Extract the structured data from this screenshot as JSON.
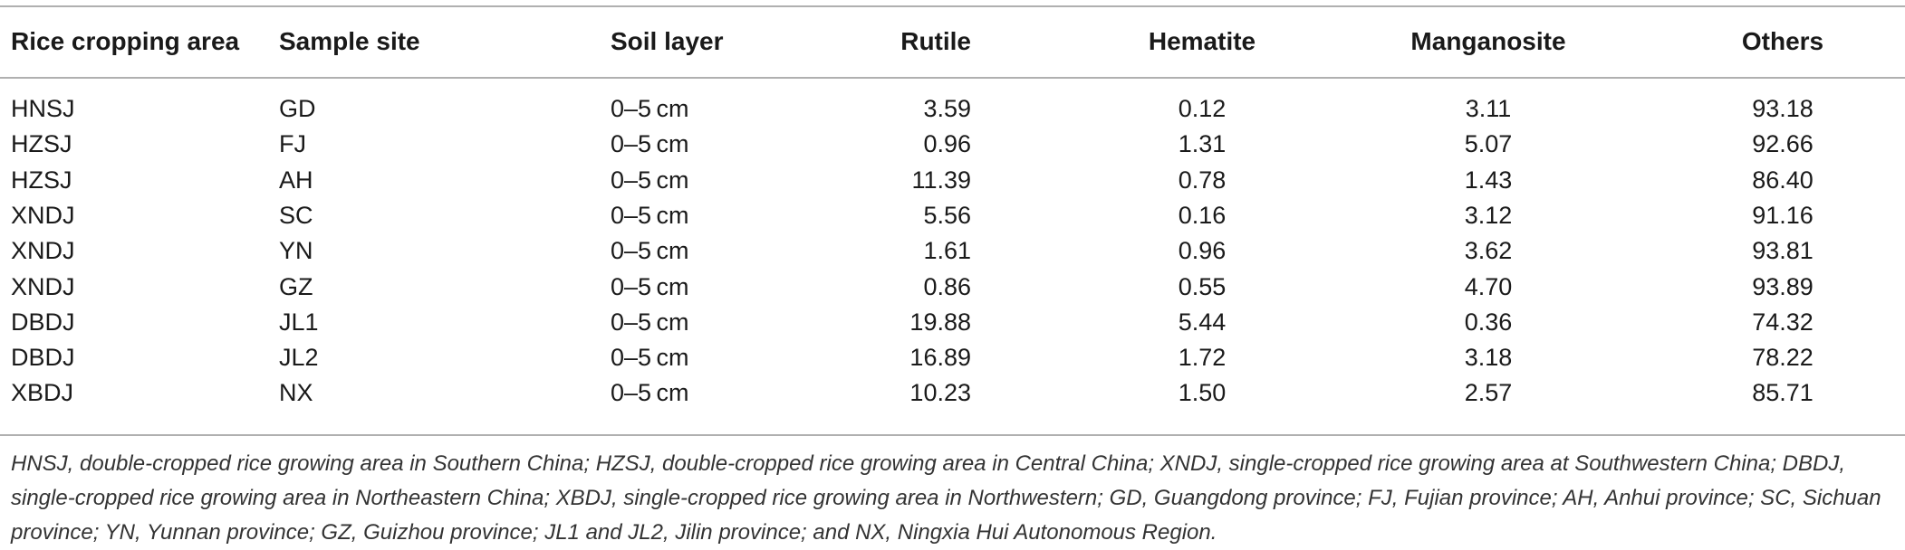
{
  "table": {
    "headers": {
      "area": "Rice cropping area",
      "site": "Sample site",
      "layer": "Soil layer",
      "rutile": "Rutile",
      "hematite": "Hematite",
      "manganosite": "Manganosite",
      "others": "Others"
    },
    "rows": [
      {
        "area": "HNSJ",
        "site": "GD",
        "layer": "0–5 cm",
        "rutile": "3.59",
        "hematite": "0.12",
        "manganosite": "3.11",
        "others": "93.18"
      },
      {
        "area": "HZSJ",
        "site": "FJ",
        "layer": "0–5 cm",
        "rutile": "0.96",
        "hematite": "1.31",
        "manganosite": "5.07",
        "others": "92.66"
      },
      {
        "area": "HZSJ",
        "site": "AH",
        "layer": "0–5 cm",
        "rutile": "11.39",
        "hematite": "0.78",
        "manganosite": "1.43",
        "others": "86.40"
      },
      {
        "area": "XNDJ",
        "site": "SC",
        "layer": "0–5 cm",
        "rutile": "5.56",
        "hematite": "0.16",
        "manganosite": "3.12",
        "others": "91.16"
      },
      {
        "area": "XNDJ",
        "site": "YN",
        "layer": "0–5 cm",
        "rutile": "1.61",
        "hematite": "0.96",
        "manganosite": "3.62",
        "others": "93.81"
      },
      {
        "area": "XNDJ",
        "site": "GZ",
        "layer": "0–5 cm",
        "rutile": "0.86",
        "hematite": "0.55",
        "manganosite": "4.70",
        "others": "93.89"
      },
      {
        "area": "DBDJ",
        "site": "JL1",
        "layer": "0–5 cm",
        "rutile": "19.88",
        "hematite": "5.44",
        "manganosite": "0.36",
        "others": "74.32"
      },
      {
        "area": "DBDJ",
        "site": "JL2",
        "layer": "0–5 cm",
        "rutile": "16.89",
        "hematite": "1.72",
        "manganosite": "3.18",
        "others": "78.22"
      },
      {
        "area": "XBDJ",
        "site": "NX",
        "layer": "0–5 cm",
        "rutile": "10.23",
        "hematite": "1.50",
        "manganosite": "2.57",
        "others": "85.71"
      }
    ]
  },
  "footnote": "HNSJ, double-cropped rice growing area in Southern China; HZSJ, double-cropped rice growing area in Central China; XNDJ, single-cropped rice growing area at Southwestern China; DBDJ, single-cropped rice growing area in Northeastern China; XBDJ, single-cropped rice growing area in Northwestern; GD, Guangdong province; FJ, Fujian province; AH, Anhui province; SC, Sichuan province; YN, Yunnan province; GZ, Guizhou province; JL1 and JL2, Jilin province; and NX, Ningxia Hui Autonomous Region."
}
